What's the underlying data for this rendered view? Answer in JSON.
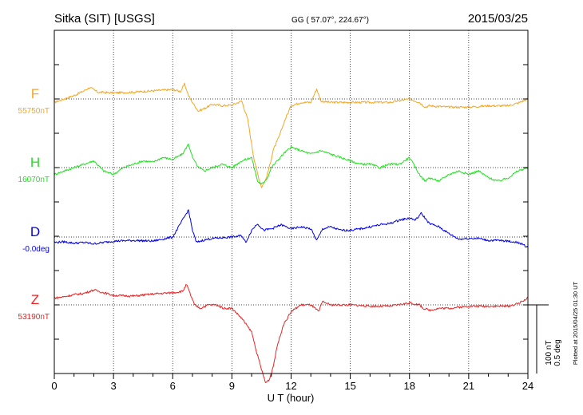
{
  "chart_data": {
    "type": "line",
    "title": "Sitka (SIT)  [USGS]",
    "subtitle": "GG ( 57.07°, 224.67°)",
    "date": "2015/03/25",
    "xlabel": "U T (hour)",
    "xlim": [
      0,
      24
    ],
    "x_ticks": [
      "0",
      "3",
      "6",
      "9",
      "12",
      "15",
      "18",
      "21",
      "24"
    ],
    "grid": true,
    "scale_bar": {
      "line1": "100 nT",
      "line2": "0.5 deg"
    },
    "plotted_note": "Plotted at 2015/04/25 01:30 UT",
    "series": [
      {
        "name": "F",
        "baseline_label": "55750nT",
        "color": "#f5a623",
        "x": [
          0,
          0.5,
          1,
          1.5,
          1.8,
          2.2,
          3,
          4,
          5,
          6,
          6.4,
          6.6,
          6.8,
          7,
          7.3,
          7.6,
          8,
          8.5,
          9,
          9.5,
          9.8,
          10.1,
          10.3,
          10.5,
          10.7,
          10.9,
          11.1,
          11.4,
          11.7,
          12,
          12.5,
          13,
          13.3,
          13.5,
          14,
          15,
          16,
          17,
          18,
          18.5,
          18.8,
          19,
          20,
          21,
          22,
          23,
          23.5,
          24
        ],
        "values": [
          -5,
          0,
          5,
          12,
          17,
          10,
          9,
          10,
          12,
          14,
          11,
          22,
          5,
          -5,
          -18,
          -14,
          -8,
          -10,
          -9,
          -3,
          -30,
          -85,
          -110,
          -130,
          -120,
          -100,
          -75,
          -55,
          -30,
          -10,
          -5,
          -5,
          15,
          -3,
          -5,
          -5,
          -5,
          -5,
          0,
          -5,
          -12,
          -10,
          -12,
          -12,
          -10,
          -10,
          -6,
          0
        ]
      },
      {
        "name": "H",
        "baseline_label": "16070nT",
        "color": "#22e022",
        "x": [
          0,
          0.5,
          1,
          1.5,
          2,
          2.5,
          3,
          3.5,
          4,
          4.5,
          5,
          5.5,
          6,
          6.5,
          6.8,
          7,
          7.3,
          7.6,
          8,
          8.5,
          9,
          9.5,
          10,
          10.3,
          10.5,
          10.8,
          11,
          11.3,
          11.6,
          12,
          12.5,
          13,
          13.5,
          14,
          14.5,
          15,
          15.5,
          16,
          16.5,
          17,
          17.5,
          18,
          18.3,
          18.5,
          18.8,
          19,
          19.5,
          20,
          20.5,
          21,
          21.5,
          22,
          22.5,
          23,
          23.5,
          24
        ],
        "values": [
          -10,
          -5,
          0,
          5,
          10,
          -5,
          -10,
          0,
          5,
          10,
          8,
          15,
          12,
          20,
          35,
          15,
          0,
          -5,
          0,
          5,
          0,
          10,
          15,
          -20,
          -25,
          -15,
          0,
          10,
          20,
          30,
          25,
          20,
          25,
          20,
          15,
          10,
          5,
          5,
          0,
          5,
          5,
          15,
          0,
          -10,
          -20,
          -15,
          -20,
          -10,
          -5,
          -10,
          -5,
          -15,
          -20,
          -15,
          -5,
          0
        ]
      },
      {
        "name": "D",
        "baseline_label": "-0.0deg",
        "color": "#0000ee",
        "x": [
          0,
          0.5,
          1,
          1.5,
          2,
          3,
          4,
          5,
          6,
          6.3,
          6.6,
          6.8,
          7,
          7.2,
          7.5,
          8,
          9,
          9.5,
          9.7,
          10,
          10.3,
          10.6,
          11,
          11.5,
          12,
          12.5,
          13,
          13.3,
          13.6,
          14,
          14.5,
          15,
          15.5,
          16,
          16.5,
          17,
          17.5,
          18,
          18.3,
          18.6,
          19,
          19.5,
          20,
          20.5,
          21,
          21.5,
          22,
          22.5,
          23,
          23.5,
          24
        ],
        "values": [
          -8,
          -7,
          -9,
          -8,
          -10,
          -6,
          -5,
          -6,
          0,
          15,
          30,
          40,
          10,
          -8,
          -5,
          -2,
          0,
          2,
          -8,
          10,
          20,
          10,
          12,
          18,
          12,
          15,
          12,
          -5,
          12,
          15,
          10,
          10,
          12,
          15,
          18,
          20,
          25,
          28,
          25,
          35,
          20,
          15,
          5,
          -3,
          -2,
          -2,
          -5,
          -5,
          -6,
          -8,
          -15
        ]
      },
      {
        "name": "Z",
        "baseline_label": "53190nT",
        "color": "#ee2222",
        "x": [
          0,
          0.5,
          1,
          1.5,
          2,
          2.5,
          3,
          4,
          5,
          6,
          6.5,
          6.7,
          6.9,
          7.1,
          7.4,
          7.8,
          8.2,
          8.6,
          9,
          9.5,
          10,
          10.3,
          10.5,
          10.7,
          10.9,
          11.1,
          11.3,
          11.6,
          12,
          12.5,
          13,
          13.4,
          13.6,
          14,
          15,
          16,
          17,
          18,
          18.5,
          18.7,
          19,
          19.5,
          20,
          21,
          22,
          23,
          23.5,
          24
        ],
        "values": [
          10,
          12,
          15,
          17,
          22,
          18,
          14,
          13,
          16,
          18,
          20,
          30,
          15,
          0,
          -5,
          0,
          0,
          -5,
          -5,
          -20,
          -40,
          -75,
          -95,
          -115,
          -110,
          -90,
          -60,
          -30,
          -10,
          0,
          0,
          -10,
          5,
          0,
          0,
          -2,
          -2,
          3,
          0,
          -5,
          -8,
          -5,
          -5,
          -2,
          -2,
          -2,
          2,
          10
        ]
      }
    ]
  }
}
